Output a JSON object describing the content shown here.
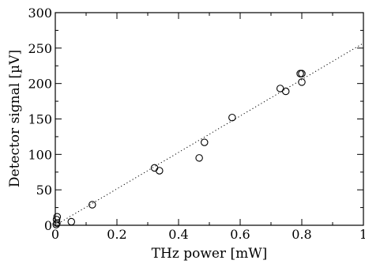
{
  "chart_data": {
    "type": "scatter",
    "xlabel": "THz power [mW]",
    "ylabel": "Detector signal [µV]",
    "xlim": [
      0,
      1
    ],
    "ylim": [
      0,
      300
    ],
    "xticks": [
      0,
      0.2,
      0.4,
      0.6,
      0.8,
      1
    ],
    "xtick_labels": [
      "0",
      "0.2",
      "0.4",
      "0.6",
      "0.8",
      "1"
    ],
    "yticks": [
      0,
      50,
      100,
      150,
      200,
      250,
      300
    ],
    "ytick_labels": [
      "0",
      "50",
      "100",
      "150",
      "200",
      "250",
      "300"
    ],
    "grid": false,
    "series": [
      {
        "marker": "open-circle",
        "points": [
          {
            "x": 0.003,
            "y": 1
          },
          {
            "x": 0.005,
            "y": 3
          },
          {
            "x": 0.004,
            "y": 8
          },
          {
            "x": 0.006,
            "y": 12
          },
          {
            "x": 0.052,
            "y": 5
          },
          {
            "x": 0.12,
            "y": 29
          },
          {
            "x": 0.322,
            "y": 81
          },
          {
            "x": 0.338,
            "y": 77
          },
          {
            "x": 0.467,
            "y": 95
          },
          {
            "x": 0.484,
            "y": 117
          },
          {
            "x": 0.574,
            "y": 152
          },
          {
            "x": 0.73,
            "y": 193
          },
          {
            "x": 0.748,
            "y": 189
          },
          {
            "x": 0.795,
            "y": 214
          },
          {
            "x": 0.8,
            "y": 214
          },
          {
            "x": 0.8,
            "y": 202
          }
        ]
      }
    ],
    "fit_line": {
      "style": "dotted",
      "x": [
        0,
        1
      ],
      "y": [
        0,
        257
      ]
    }
  }
}
